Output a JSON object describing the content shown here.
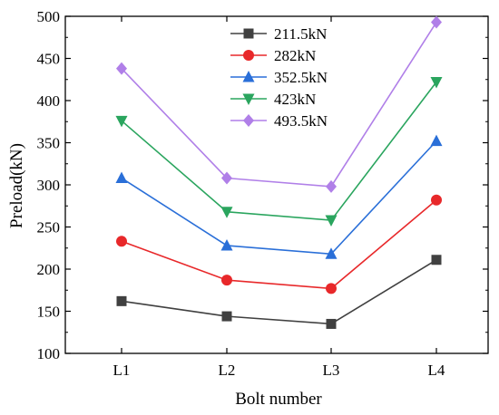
{
  "chart_data": {
    "type": "line",
    "xlabel": "Bolt number",
    "ylabel": "Preload(kN)",
    "categories": [
      "L1",
      "L2",
      "L3",
      "L4"
    ],
    "ylim": [
      100,
      500
    ],
    "yticks": [
      100,
      150,
      200,
      250,
      300,
      350,
      400,
      450,
      500
    ],
    "grid": false,
    "legend_position": "top-right",
    "series": [
      {
        "name": "211.5kN",
        "color": "#404040",
        "marker": "square",
        "values": [
          162,
          144,
          135,
          211
        ]
      },
      {
        "name": "282kN",
        "color": "#e8282a",
        "marker": "circle",
        "values": [
          233,
          187,
          177,
          282
        ]
      },
      {
        "name": "352.5kN",
        "color": "#2a6fd8",
        "marker": "triangle-up",
        "values": [
          308,
          228,
          218,
          352
        ]
      },
      {
        "name": "423kN",
        "color": "#2aa55e",
        "marker": "triangle-down",
        "values": [
          376,
          268,
          258,
          422
        ]
      },
      {
        "name": "493.5kN",
        "color": "#b07fe8",
        "marker": "diamond",
        "values": [
          438,
          308,
          298,
          493
        ]
      }
    ]
  }
}
